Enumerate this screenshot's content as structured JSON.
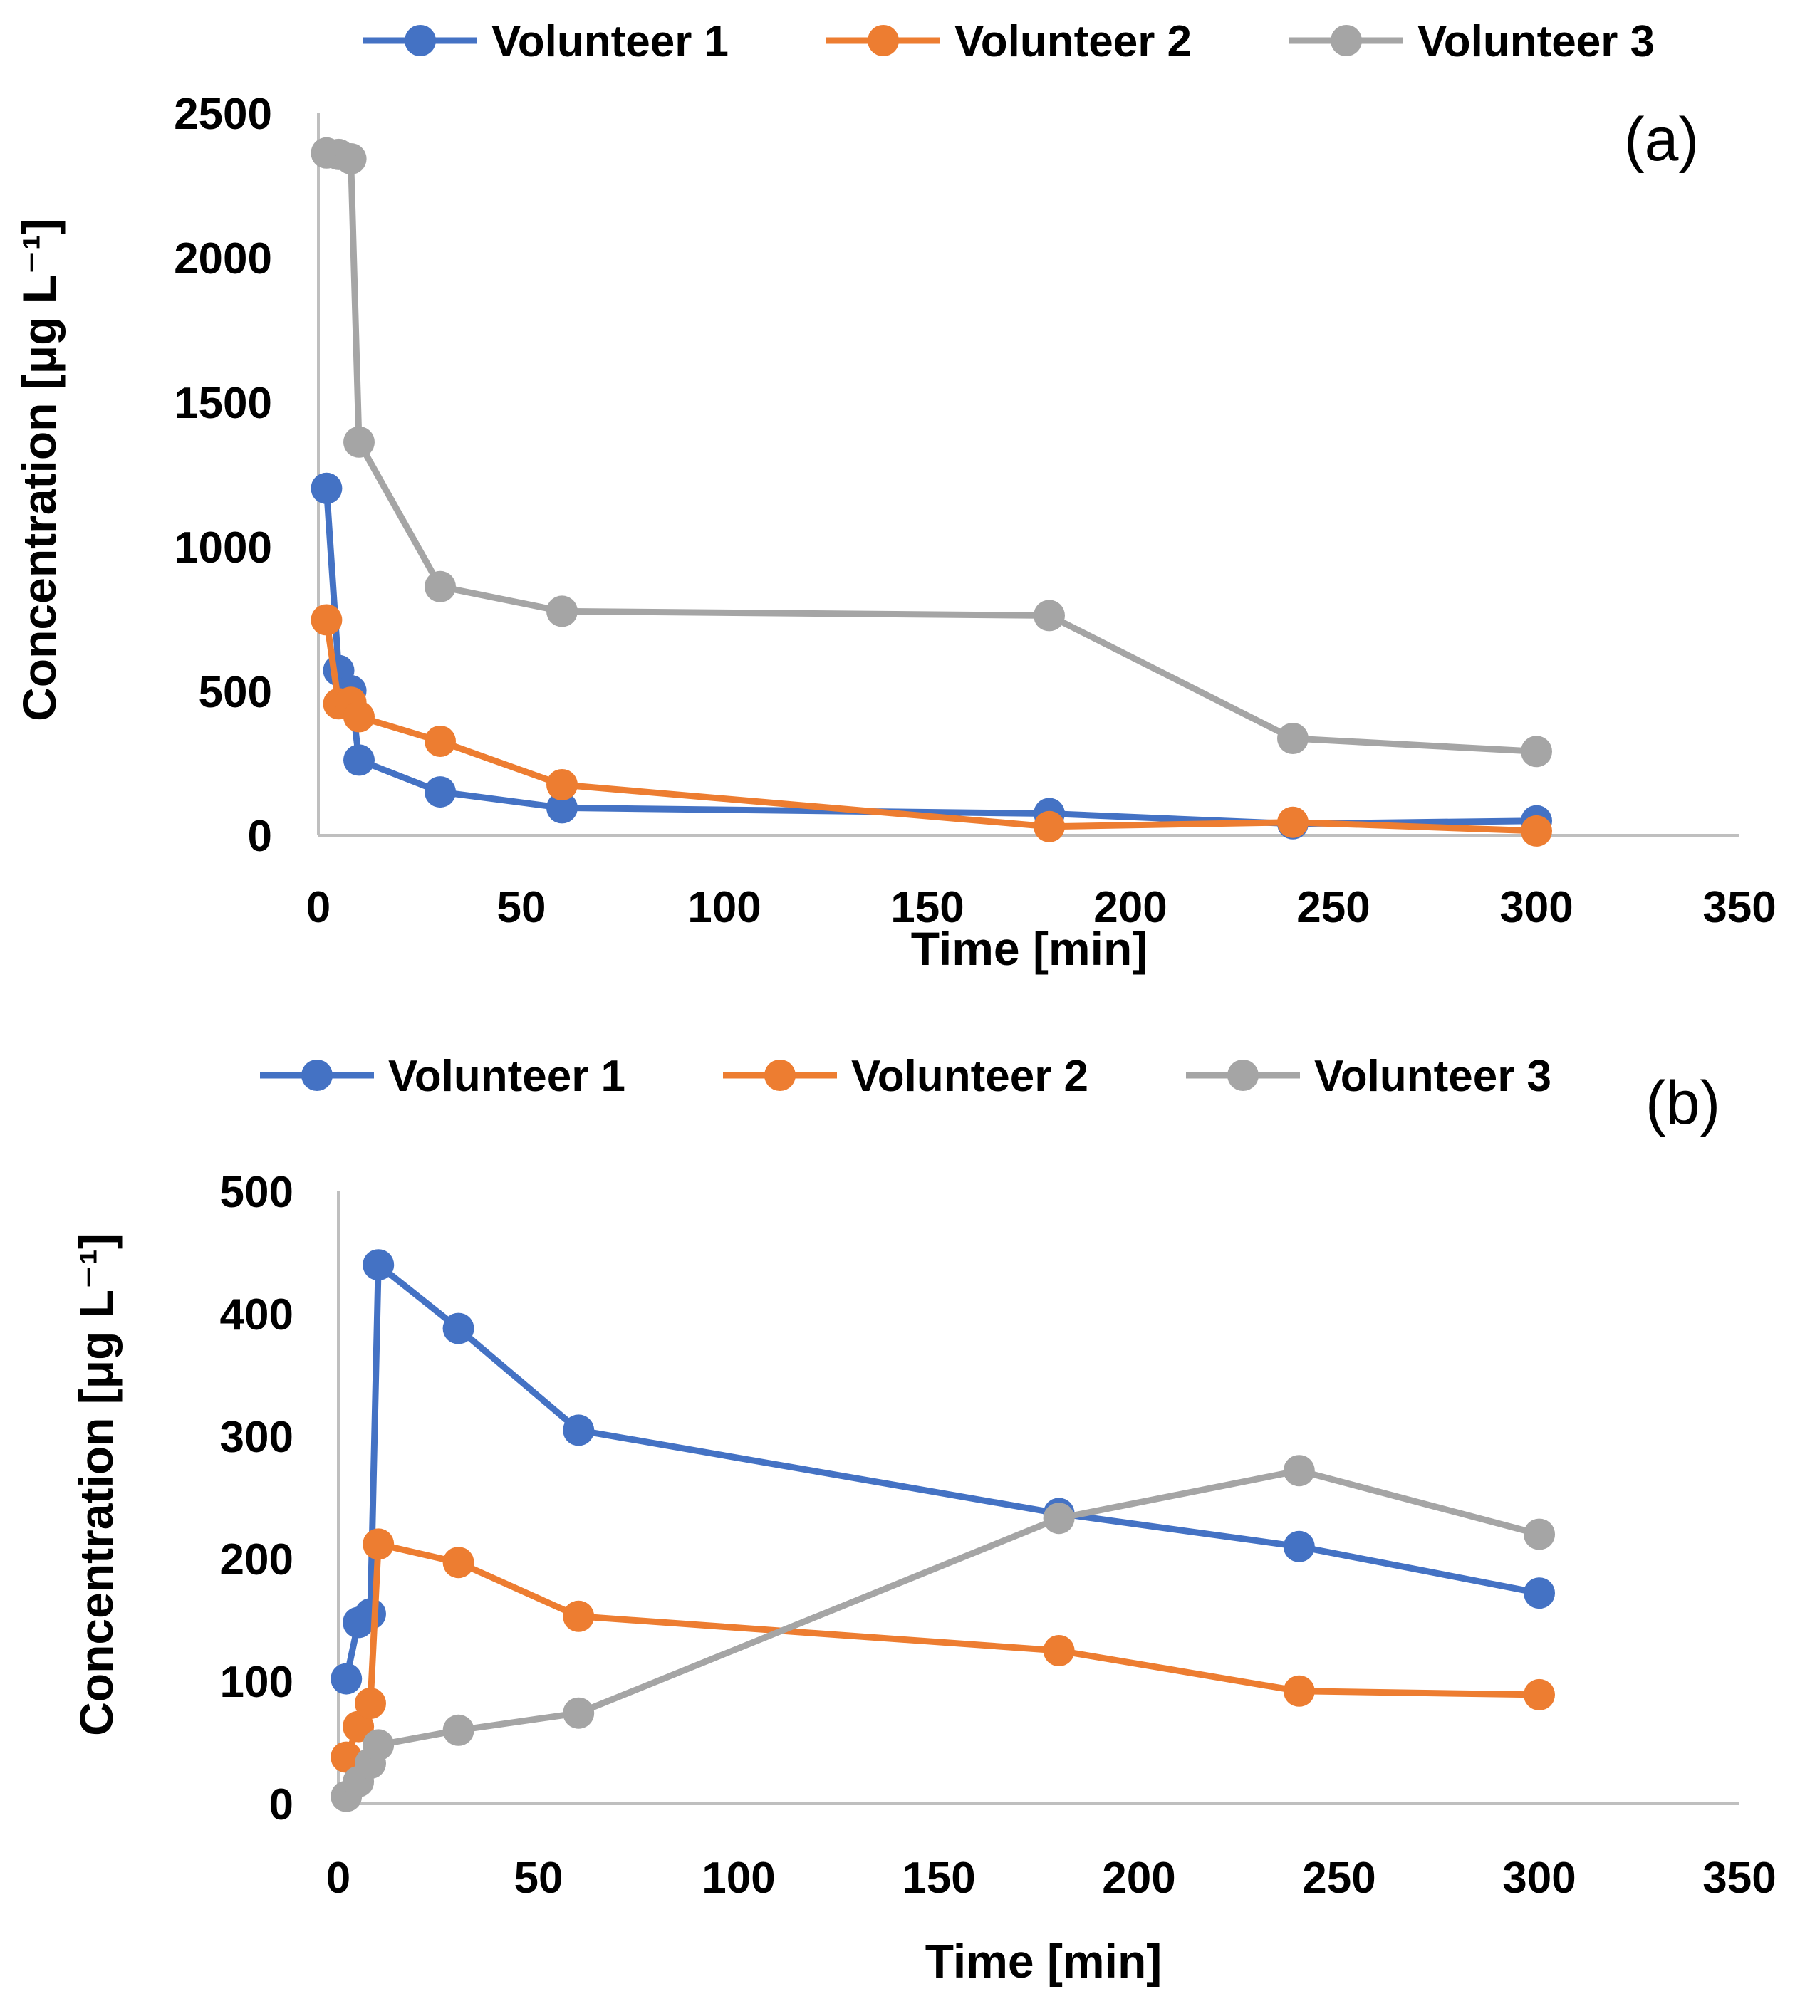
{
  "chart_data": [
    {
      "type": "line",
      "panel_label": "(a)",
      "xlabel": "Time [min]",
      "ylabel": "Concentration [μg L⁻¹]",
      "xlim": [
        0,
        350
      ],
      "ylim": [
        0,
        2500
      ],
      "xticks": [
        "0",
        "50",
        "100",
        "150",
        "200",
        "250",
        "300",
        "350"
      ],
      "yticks": [
        "0",
        "500",
        "1000",
        "1500",
        "2000",
        "2500"
      ],
      "legend_position": "top",
      "grid": false,
      "series": [
        {
          "name": "Volunteer 1",
          "color": "#4472C4",
          "x": [
            2,
            5,
            8,
            10,
            30,
            60,
            180,
            240,
            300
          ],
          "y": [
            1200,
            570,
            500,
            260,
            150,
            95,
            75,
            40,
            50
          ]
        },
        {
          "name": "Volunteer 2",
          "color": "#ED7D31",
          "x": [
            2,
            5,
            8,
            10,
            30,
            60,
            180,
            240,
            300
          ],
          "y": [
            745,
            455,
            460,
            410,
            325,
            175,
            30,
            45,
            15
          ]
        },
        {
          "name": "Volunteer 3",
          "color": "#A5A5A5",
          "x": [
            2,
            5,
            8,
            10,
            30,
            60,
            180,
            240,
            300
          ],
          "y": [
            2360,
            2355,
            2340,
            1360,
            860,
            775,
            760,
            335,
            290
          ]
        }
      ]
    },
    {
      "type": "line",
      "panel_label": "(b)",
      "xlabel": "Time [min]",
      "ylabel": "Concentration [μg L⁻¹]",
      "xlim": [
        0,
        350
      ],
      "ylim": [
        0,
        500
      ],
      "xticks": [
        "0",
        "50",
        "100",
        "150",
        "200",
        "250",
        "300",
        "350"
      ],
      "yticks": [
        "0",
        "100",
        "200",
        "300",
        "400",
        "500"
      ],
      "legend_position": "top",
      "grid": false,
      "series": [
        {
          "name": "Volunteer 1",
          "color": "#4472C4",
          "x": [
            2,
            5,
            8,
            10,
            30,
            60,
            180,
            240,
            300
          ],
          "y": [
            102,
            148,
            155,
            440,
            388,
            305,
            237,
            210,
            172
          ]
        },
        {
          "name": "Volunteer 2",
          "color": "#ED7D31",
          "x": [
            2,
            5,
            8,
            10,
            30,
            60,
            180,
            240,
            300
          ],
          "y": [
            38,
            63,
            82,
            212,
            197,
            153,
            125,
            92,
            89
          ]
        },
        {
          "name": "Volunteer 3",
          "color": "#A5A5A5",
          "x": [
            2,
            5,
            8,
            10,
            30,
            60,
            180,
            240,
            300
          ],
          "y": [
            6,
            18,
            33,
            48,
            60,
            74,
            233,
            272,
            220
          ]
        }
      ]
    }
  ]
}
